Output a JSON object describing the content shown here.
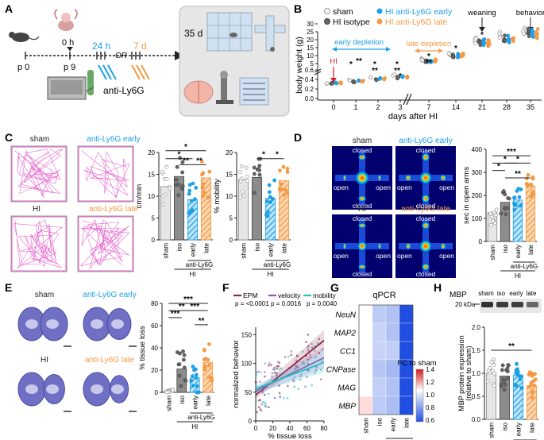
{
  "panels": {
    "A": {
      "letter": "A",
      "t0": "0 h",
      "p0": "p 0",
      "p9": "p 9",
      "t24": "24 h",
      "or": "OR",
      "t7": "7 d",
      "t35": "35 d",
      "treatment": "anti-Ly6G"
    },
    "B": {
      "letter": "B",
      "ylabel": "body weight (g)",
      "xlabel": "days after  HI",
      "legend": [
        "sham",
        "HI isotype",
        "HI anti-Ly6G early",
        "HI anti-Ly6G late"
      ],
      "hi": "HI",
      "early": "early depletion",
      "late": "late depletion",
      "weaning": "weaning",
      "behavior": "behavior",
      "days": [
        "0",
        "1",
        "2",
        "3",
        "7",
        "14",
        "21",
        "28",
        "35"
      ],
      "yticks": [
        "0.0",
        "0.2",
        "0.4",
        "0.6",
        "5",
        "10",
        "15",
        "20",
        "25",
        "30"
      ],
      "stars": [
        "*",
        "**",
        "*",
        "**",
        "*",
        "**",
        "*",
        "*",
        "**",
        "*",
        "*"
      ]
    },
    "C": {
      "letter": "C",
      "tiles": [
        "sham",
        "anti-Ly6G early",
        "HI",
        "anti-Ly6G late"
      ],
      "velocity_ylabel": "cm/min",
      "velocity_yticks": [
        "0",
        "5",
        "10",
        "15",
        "20"
      ],
      "mobility_ylabel": "% mobility",
      "mobility_yticks": [
        "0",
        "5",
        "10",
        "15",
        "20"
      ],
      "groups": [
        "sham",
        "iso",
        "early",
        "late"
      ],
      "treatment": "anti-Ly6G",
      "hi": "HI",
      "stars": [
        "*",
        "*",
        "**",
        "**",
        "*",
        "*"
      ]
    },
    "D": {
      "letter": "D",
      "tiles": [
        "sham",
        "anti-Ly6G early",
        "HI",
        "anti-Ly6G late"
      ],
      "closed": "closed",
      "open": "open",
      "ylabel": "sec in open arms",
      "yticks": [
        "0",
        "100",
        "200",
        "300",
        "400"
      ],
      "groups": [
        "sham",
        "iso",
        "early",
        "late"
      ],
      "treatment": "anti-Ly6G",
      "hi": "HI",
      "stars": [
        "***",
        "*",
        "*",
        "*",
        "**"
      ]
    },
    "E": {
      "letter": "E",
      "tiles": [
        "sham",
        "anti-Ly6G early",
        "HI",
        "anti-Ly6G late"
      ],
      "ylabel": "% tissue loss",
      "yticks": [
        "0",
        "20",
        "40",
        "60",
        "80"
      ],
      "groups": [
        "sham",
        "iso",
        "early",
        "late"
      ],
      "treatment": "anti-Ly6G",
      "hi": "HI",
      "stars": [
        "***",
        "**",
        "***",
        "***",
        "**"
      ]
    },
    "F": {
      "letter": "F",
      "legend": [
        "EPM",
        "velocity",
        "mobility"
      ],
      "pvals": [
        "p = <0.0001",
        "p = 0.0016",
        "p = 0.0040"
      ],
      "ylabel": "normalized behavior",
      "xlabel": "% tissue loss",
      "yticks": [
        "0",
        "50",
        "100",
        "150"
      ],
      "xticks": [
        "0",
        "20",
        "40",
        "60",
        "80"
      ]
    },
    "G": {
      "letter": "G",
      "title": "qPCR",
      "genes": [
        "NeuN",
        "MAP2",
        "CC1",
        "CNPase",
        "MAG",
        "MBP"
      ],
      "groups": [
        "sham",
        "iso",
        "early",
        "late"
      ],
      "treatment": "anti-Ly6G",
      "hi": "HI",
      "scale_label": "FC to sham",
      "scale_ticks": [
        "1.4",
        "1.2",
        "1.0",
        "0.8",
        "0.6"
      ],
      "values": [
        [
          1.0,
          0.88,
          0.86,
          0.55
        ],
        [
          1.0,
          0.9,
          0.86,
          0.58
        ],
        [
          1.0,
          0.9,
          0.89,
          0.6
        ],
        [
          1.0,
          0.87,
          0.84,
          0.56
        ],
        [
          1.0,
          0.89,
          0.86,
          0.57
        ],
        [
          1.06,
          0.88,
          0.85,
          0.58
        ]
      ]
    },
    "H": {
      "letter": "H",
      "title": "MBP",
      "lanes": [
        "sham",
        "iso",
        "early",
        "late"
      ],
      "marker": "20 kDa",
      "ylabel1": "MBP protein expression",
      "ylabel2": "(relative to sham)",
      "yticks": [
        "0.0",
        "0.5",
        "1.0",
        "1.5",
        "2.0"
      ],
      "groups": [
        "sham",
        "iso",
        "early",
        "late"
      ],
      "treatment": "anti-Ly6G",
      "hi": "HI",
      "stars": [
        "**"
      ]
    }
  },
  "colors": {
    "sham": "#a6a6a6",
    "iso": "#555555",
    "early": "#1ea0e6",
    "late": "#f39a45",
    "red": "#e02020",
    "epm": "#8a2545",
    "velocity": "#8a5ab8",
    "mobility": "#2abcc0"
  },
  "chart_data": [
    {
      "type": "scatter",
      "title": "",
      "xlabel": "days after  HI",
      "ylabel": "body weight (g)",
      "categories": [
        "0",
        "1",
        "2",
        "3",
        "7",
        "14",
        "21",
        "28",
        "35"
      ],
      "series": [
        {
          "name": "sham",
          "values": [
            0.32,
            0.39,
            0.44,
            0.49,
            7.5,
            11.5,
            20,
            22.5,
            25
          ]
        },
        {
          "name": "HI isotype",
          "values": [
            0.32,
            0.36,
            0.4,
            0.44,
            6.5,
            10,
            19,
            21.5,
            24.5
          ]
        },
        {
          "name": "HI anti-Ly6G early",
          "values": [
            0.32,
            0.37,
            0.41,
            0.45,
            6.5,
            10,
            18.5,
            20.5,
            24
          ]
        },
        {
          "name": "HI anti-Ly6G late",
          "values": [
            0.32,
            0.37,
            0.41,
            0.45,
            6.8,
            10.5,
            18,
            20.5,
            24
          ]
        }
      ]
    },
    {
      "type": "bar",
      "title": "",
      "ylabel": "cm/min",
      "categories": [
        "sham",
        "iso",
        "early",
        "late"
      ],
      "values": [
        12.2,
        14.5,
        9.2,
        14.2
      ],
      "ylim": [
        0,
        20
      ]
    },
    {
      "type": "bar",
      "title": "",
      "ylabel": "% mobility",
      "categories": [
        "sham",
        "iso",
        "early",
        "late"
      ],
      "values": [
        13.8,
        14.3,
        9.5,
        13.6
      ],
      "ylim": [
        0,
        20
      ]
    },
    {
      "type": "bar",
      "title": "",
      "ylabel": "sec in open arms",
      "categories": [
        "sham",
        "iso",
        "early",
        "late"
      ],
      "values": [
        125,
        170,
        180,
        240
      ],
      "ylim": [
        0,
        400
      ]
    },
    {
      "type": "bar",
      "title": "",
      "ylabel": "% tissue loss",
      "categories": [
        "sham",
        "iso",
        "early",
        "late"
      ],
      "values": [
        1,
        21,
        13,
        27
      ],
      "ylim": [
        0,
        80
      ]
    },
    {
      "type": "scatter",
      "title": "",
      "xlabel": "% tissue loss",
      "ylabel": "normalized behavior",
      "series": [
        {
          "name": "EPM",
          "fit": [
            [
              0,
              45
            ],
            [
              80,
              140
            ]
          ]
        },
        {
          "name": "velocity",
          "fit": [
            [
              0,
              52
            ],
            [
              80,
              110
            ]
          ]
        },
        {
          "name": "mobility",
          "fit": [
            [
              0,
              56
            ],
            [
              80,
              102
            ]
          ]
        }
      ]
    },
    {
      "type": "heatmap",
      "title": "qPCR",
      "categories": [
        "sham",
        "iso",
        "early",
        "late"
      ],
      "rows": [
        "NeuN",
        "MAP2",
        "CC1",
        "CNPase",
        "MAG",
        "MBP"
      ]
    },
    {
      "type": "bar",
      "title": "",
      "ylabel": "MBP protein expression (relative to sham)",
      "categories": [
        "sham",
        "iso",
        "early",
        "late"
      ],
      "values": [
        1.0,
        0.94,
        0.96,
        0.73
      ],
      "ylim": [
        0,
        2.0
      ]
    }
  ]
}
